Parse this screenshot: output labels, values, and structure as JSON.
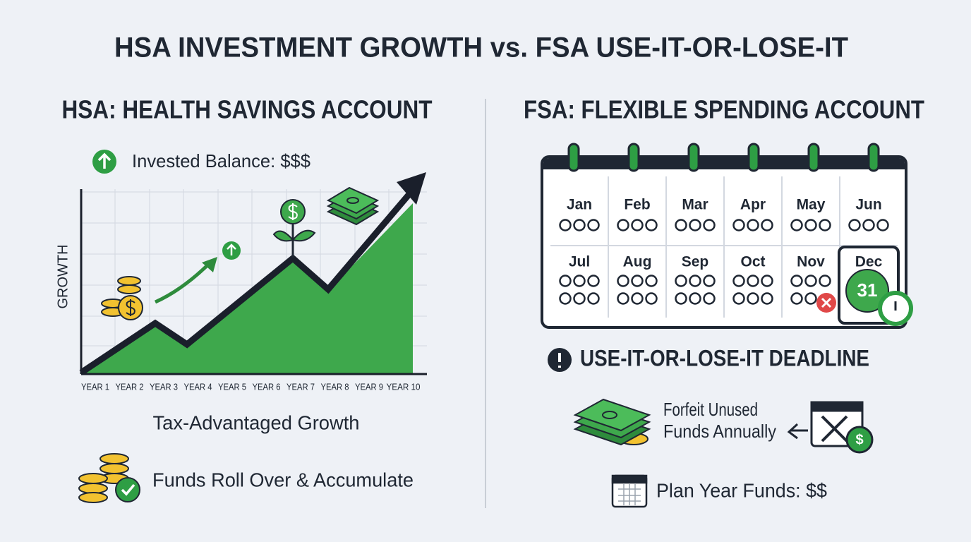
{
  "title": "HSA INVESTMENT GROWTH vs. FSA USE-IT-OR-LOSE-IT",
  "hsa": {
    "heading": "HSA: HEALTH SAVINGS ACCOUNT",
    "balance_label": "Invested Balance: $$$",
    "y_axis_label": "GROWTH",
    "x_labels": [
      "YEAR 1",
      "YEAR 2",
      "YEAR 3",
      "YEAR 4",
      "YEAR 5",
      "YEAR 6",
      "YEAR 7",
      "YEAR 8",
      "YEAR 9",
      "YEAR 10"
    ],
    "caption": "Tax-Advantaged Growth",
    "rollover": "Funds Roll Over & Accumulate"
  },
  "fsa": {
    "heading": "FSA: FLEXIBLE SPENDING ACCOUNT",
    "months": [
      "Jan",
      "Feb",
      "Mar",
      "Apr",
      "May",
      "Jun",
      "Jul",
      "Aug",
      "Sep",
      "Oct",
      "Nov",
      "Dec"
    ],
    "deadline_day": "31",
    "deadline": "USE-IT-OR-LOSE-IT DEADLINE",
    "forfeit": [
      "Forfeit Unused",
      "Funds Annually"
    ],
    "plan_year": "Plan Year Funds: $$"
  }
}
